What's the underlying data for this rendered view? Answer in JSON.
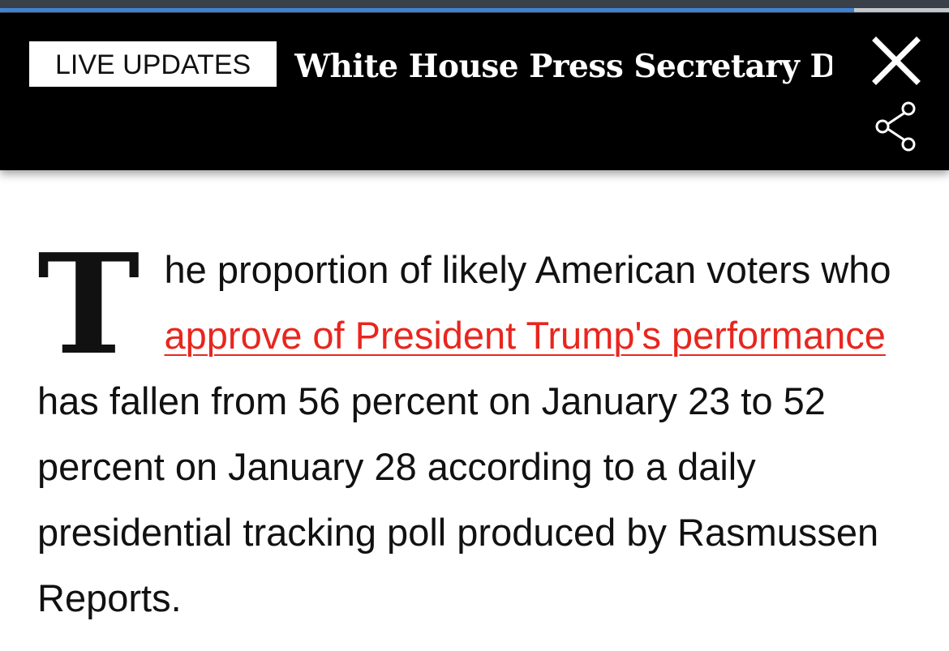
{
  "reading_progress": {
    "percent": 90
  },
  "banner": {
    "badge_label": "LIVE UPDATES",
    "headline": "White House Press Secretary Does Not Rule Out Medicaid Being...",
    "close_icon": "close-icon",
    "share_icon": "share-icon"
  },
  "article": {
    "dropcap": "T",
    "text_before_link": "he proportion of likely American voters who ",
    "link_text": "approve of President Trump's performance",
    "text_after_link": " has fallen from 56 percent on January 23 to 52 percent on January 28 according to a daily presidential tracking poll produced by Rasmussen Reports."
  },
  "colors": {
    "banner_bg": "#000000",
    "link": "#e8261e",
    "progress": "#3f86d6"
  }
}
